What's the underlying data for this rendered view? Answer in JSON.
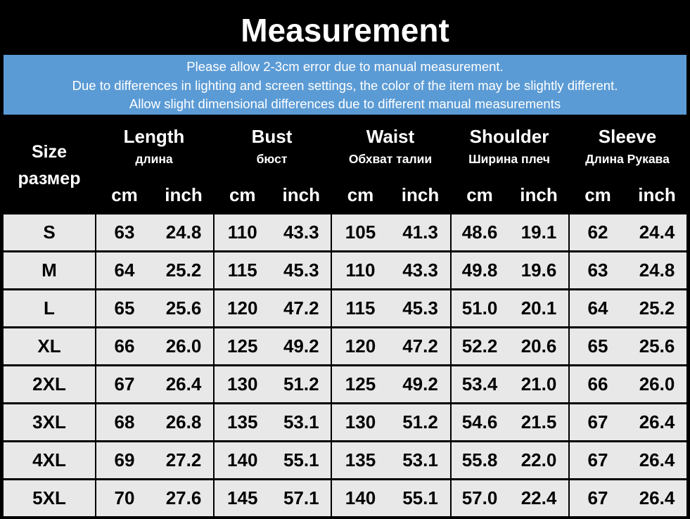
{
  "header": {
    "title": "Measurement"
  },
  "notice": [
    "Please allow 2-3cm error due to manual measurement.",
    "Due to differences in lighting and screen settings, the color of the item may be slightly different.",
    "Allow slight dimensional differences due to different manual measurements"
  ],
  "table": {
    "size_header": {
      "label": "Size",
      "sublabel": "размер"
    },
    "groups": [
      {
        "label": "Length",
        "sublabel": "длина"
      },
      {
        "label": "Bust",
        "sublabel": "бюст"
      },
      {
        "label": "Waist",
        "sublabel": "Обхват талии"
      },
      {
        "label": "Shoulder",
        "sublabel": "Ширина плеч"
      },
      {
        "label": "Sleeve",
        "sublabel": "Длина Рукава"
      }
    ],
    "units": [
      "cm",
      "inch"
    ],
    "rows": [
      [
        "S",
        "63",
        "24.8",
        "110",
        "43.3",
        "105",
        "41.3",
        "48.6",
        "19.1",
        "62",
        "24.4"
      ],
      [
        "M",
        "64",
        "25.2",
        "115",
        "45.3",
        "110",
        "43.3",
        "49.8",
        "19.6",
        "63",
        "24.8"
      ],
      [
        "L",
        "65",
        "25.6",
        "120",
        "47.2",
        "115",
        "45.3",
        "51.0",
        "20.1",
        "64",
        "25.2"
      ],
      [
        "XL",
        "66",
        "26.0",
        "125",
        "49.2",
        "120",
        "47.2",
        "52.2",
        "20.6",
        "65",
        "25.6"
      ],
      [
        "2XL",
        "67",
        "26.4",
        "130",
        "51.2",
        "125",
        "49.2",
        "53.4",
        "21.0",
        "66",
        "26.0"
      ],
      [
        "3XL",
        "68",
        "26.8",
        "135",
        "53.1",
        "130",
        "51.2",
        "54.6",
        "21.5",
        "67",
        "26.4"
      ],
      [
        "4XL",
        "69",
        "27.2",
        "140",
        "55.1",
        "135",
        "53.1",
        "55.8",
        "22.0",
        "67",
        "26.4"
      ],
      [
        "5XL",
        "70",
        "27.6",
        "145",
        "57.1",
        "140",
        "55.1",
        "57.0",
        "22.4",
        "67",
        "26.4"
      ]
    ]
  }
}
